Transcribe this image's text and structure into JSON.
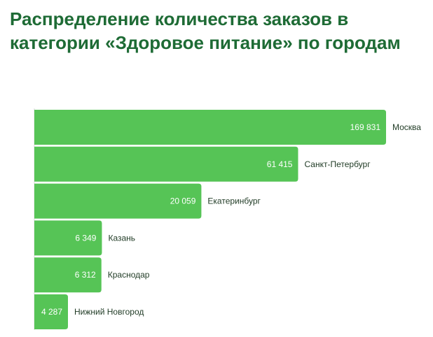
{
  "title": "Распределение количества заказов в категории «Здоровое питание» по городам",
  "colors": {
    "title": "#1e6b35",
    "bar": "#56c456",
    "value_label": "#ffffff",
    "category_label": "#1f3a24"
  },
  "chart_data": {
    "type": "bar",
    "orientation": "horizontal",
    "title": "Распределение количества заказов в категории «Здоровое питание» по городам",
    "xlabel": "",
    "ylabel": "",
    "categories": [
      "Москва",
      "Санкт-Петербург",
      "Екатеринбург",
      "Казань",
      "Краснодар",
      "Нижний Новгород"
    ],
    "values": [
      169831,
      61415,
      20059,
      6349,
      6312,
      4287
    ],
    "value_labels": [
      "169 831",
      "61 415",
      "20 059",
      "6 349",
      "6 312",
      "4 287"
    ],
    "scale": "log",
    "grid": false,
    "legend": "none"
  }
}
